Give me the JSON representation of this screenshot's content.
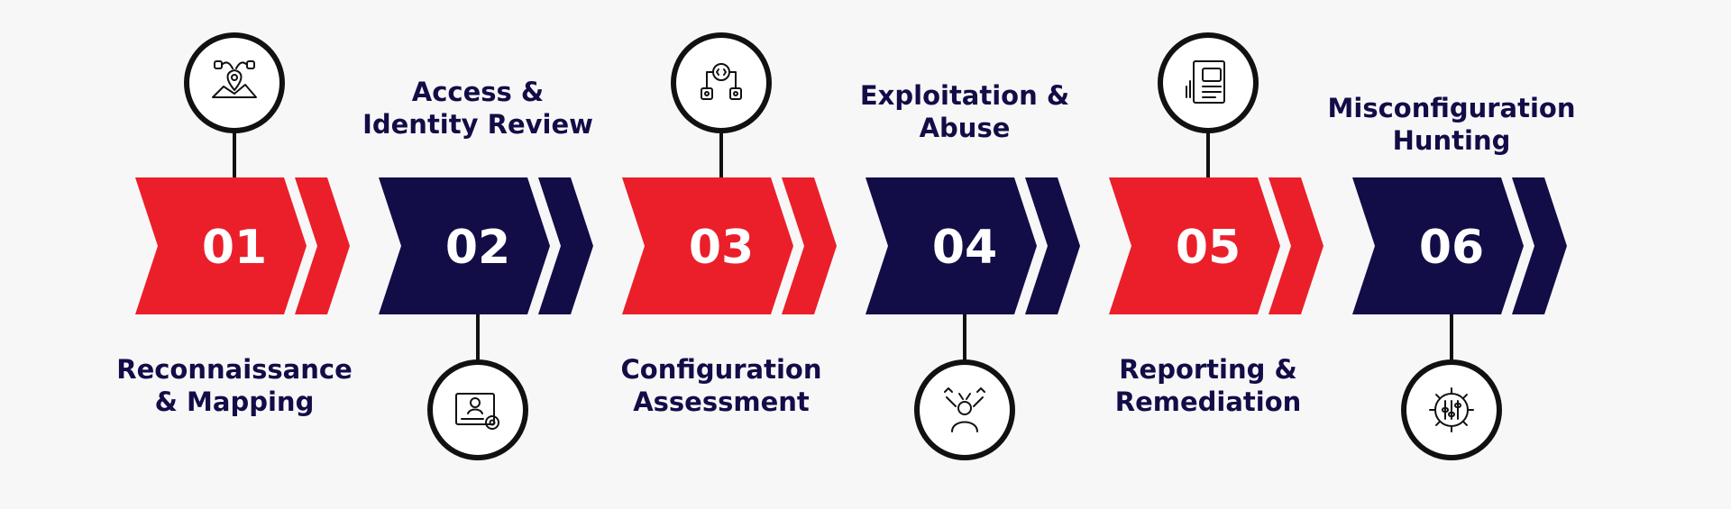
{
  "colors": {
    "red": "#eb1f2a",
    "navy": "#120d47",
    "text": "#120d47",
    "background": "#f8f7f8"
  },
  "steps": [
    {
      "number": "01",
      "title_lines": [
        "Reconnaissance",
        "& Mapping"
      ],
      "icon": "map-location-icon",
      "color": "red"
    },
    {
      "number": "02",
      "title_lines": [
        "Access &",
        "Identity Review"
      ],
      "icon": "identity-card-gear-icon",
      "color": "navy"
    },
    {
      "number": "03",
      "title_lines": [
        "Configuration",
        "Assessment"
      ],
      "icon": "code-gear-network-icon",
      "color": "red"
    },
    {
      "number": "04",
      "title_lines": [
        "Exploitation &",
        "Abuse"
      ],
      "icon": "stressed-person-icon",
      "color": "navy"
    },
    {
      "number": "05",
      "title_lines": [
        "Reporting &",
        "Remediation"
      ],
      "icon": "report-document-icon",
      "color": "red"
    },
    {
      "number": "06",
      "title_lines": [
        "Misconfiguration",
        "Hunting"
      ],
      "icon": "gear-sliders-icon",
      "color": "navy"
    }
  ]
}
